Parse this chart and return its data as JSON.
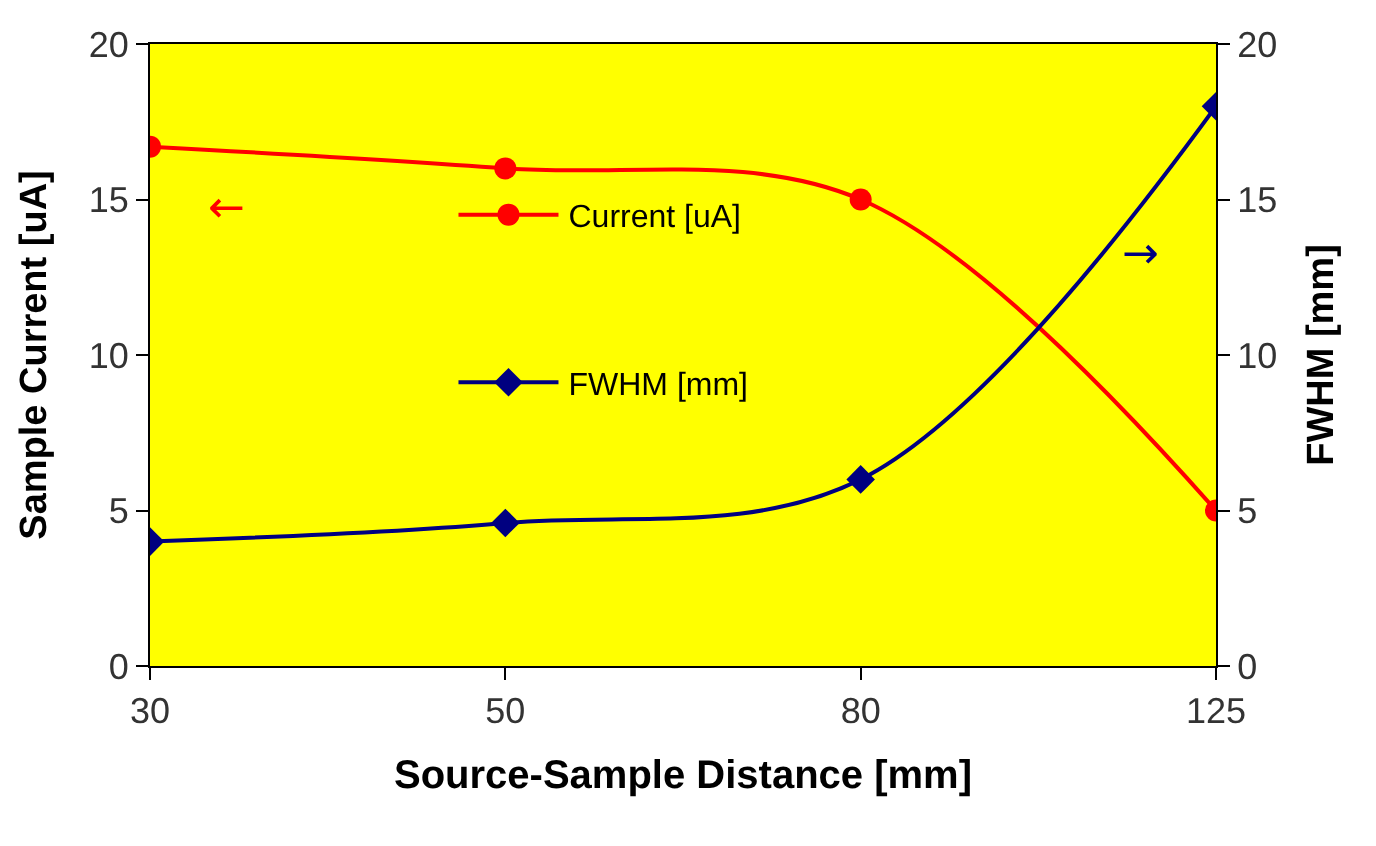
{
  "chart_data": {
    "type": "line",
    "xlabel": "Source-Sample Distance [mm]",
    "ylabel": "Sample Current [uA]",
    "y2label": "FWHM [mm]",
    "categories": [
      "30",
      "50",
      "80",
      "125"
    ],
    "series": [
      {
        "name": "Current [uA]",
        "color": "#ff0000",
        "marker": "circle",
        "values": [
          16.7,
          16.0,
          15.0,
          5.0
        ]
      },
      {
        "name": "FWHM [mm]",
        "color": "#000080",
        "marker": "diamond",
        "axis": "y2",
        "values": [
          4.0,
          4.6,
          6.0,
          18.0
        ]
      }
    ],
    "ylim": [
      0,
      20
    ],
    "yticks": [
      0,
      5,
      10,
      15,
      20
    ],
    "y2lim": [
      0,
      20
    ],
    "y2ticks": [
      0,
      5,
      10,
      15,
      20
    ],
    "annotations": [
      "←",
      "→"
    ],
    "grid": false,
    "legend": "center",
    "line_style": "solid"
  }
}
